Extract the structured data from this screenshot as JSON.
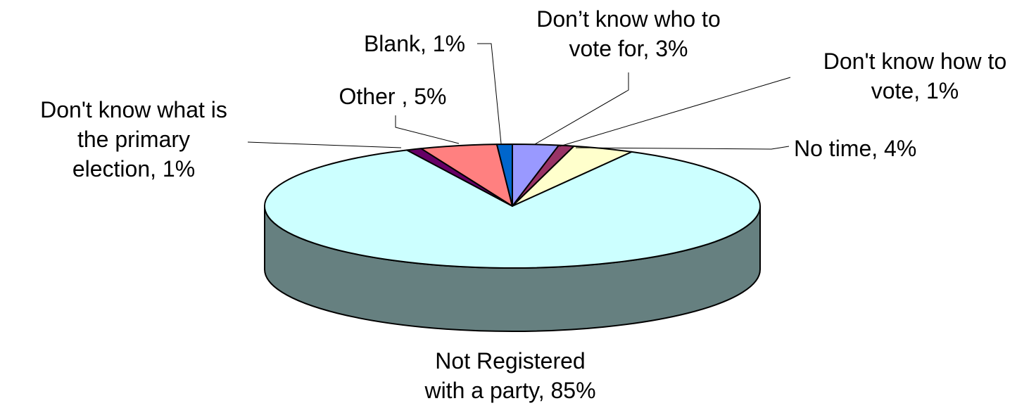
{
  "chart_data": {
    "type": "pie",
    "style": "3d",
    "title": "",
    "start_angle_deg": 0,
    "slices": [
      {
        "name": "Don’t know who to vote for",
        "value": 3,
        "color": "#9999ff",
        "label_lines": [
          "Don’t know who to",
          "vote for, 3%"
        ]
      },
      {
        "name": "Don't know how to vote",
        "value": 1,
        "color": "#993366",
        "label_lines": [
          "Don't know how to",
          "vote, 1%"
        ]
      },
      {
        "name": "No time",
        "value": 4,
        "color": "#ffffcc",
        "label_lines": [
          "No time, 4%"
        ]
      },
      {
        "name": "Not Registered with a party",
        "value": 85,
        "color": "#ccffff",
        "side_color": "#668080",
        "label_lines": [
          "Not Registered",
          "with a party, 85%"
        ]
      },
      {
        "name": "Don't know what is the primary election",
        "value": 1,
        "color": "#660066",
        "label_lines": [
          "Don't know what is",
          "the primary",
          "election, 1%"
        ]
      },
      {
        "name": "Other",
        "value": 5,
        "color": "#ff8080",
        "label_lines": [
          "Other , 5%"
        ]
      },
      {
        "name": "Blank",
        "value": 1,
        "color": "#0066cc",
        "label_lines": [
          "Blank, 1%"
        ]
      }
    ]
  }
}
